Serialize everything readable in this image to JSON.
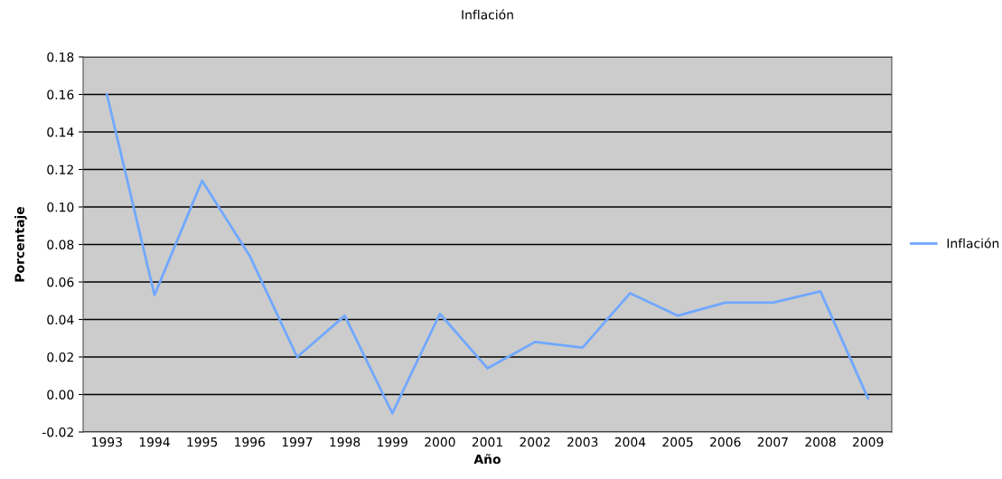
{
  "chart_data": {
    "type": "line",
    "title": "Inflación",
    "xlabel": "Año",
    "ylabel": "Porcentaje",
    "categories": [
      "1993",
      "1994",
      "1995",
      "1996",
      "1997",
      "1998",
      "1999",
      "2000",
      "2001",
      "2002",
      "2003",
      "2004",
      "2005",
      "2006",
      "2007",
      "2008",
      "2009"
    ],
    "series": [
      {
        "name": "Inflación",
        "color": "#70a8ff",
        "values": [
          0.16,
          0.053,
          0.114,
          0.074,
          0.02,
          0.042,
          -0.01,
          0.043,
          0.014,
          0.028,
          0.025,
          0.054,
          0.042,
          0.049,
          0.049,
          0.055,
          -0.002
        ]
      }
    ],
    "ylim": [
      -0.02,
      0.18
    ],
    "yticks": [
      -0.02,
      {
        "value": 0.0,
        "label": "0.00"
      },
      0.02,
      0.04,
      0.06,
      0.08,
      {
        "value": 0.1,
        "label": "0.10"
      },
      0.12,
      0.14,
      0.16,
      0.18
    ],
    "grid": "y",
    "legend": "right",
    "marker": "none",
    "line_style": "solid"
  }
}
